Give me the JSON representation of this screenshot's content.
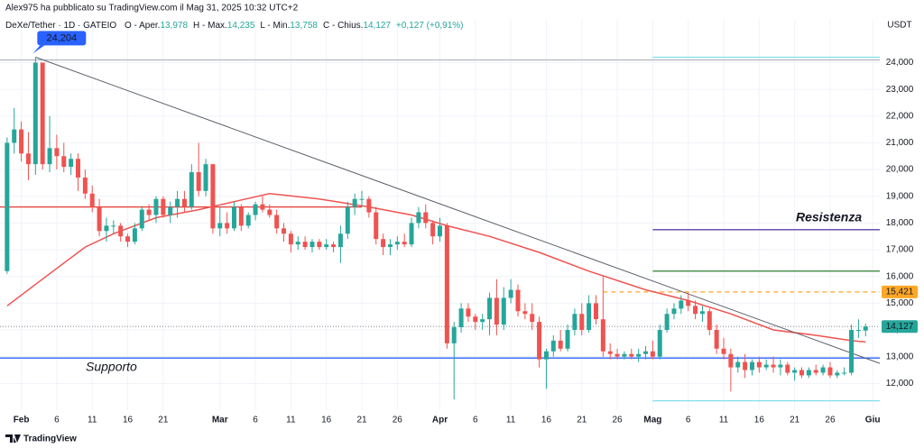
{
  "header": {
    "publisher": "Alex975 ha pubblicato su TradingView.com il Mag 31, 2025 10:32 UTC+2",
    "symbol": "DeXe/Tether · 1D · GATEIO",
    "ohlc": [
      {
        "label": "O - Aper.",
        "value": "13,978"
      },
      {
        "label": "H - Max.",
        "value": "14,235"
      },
      {
        "label": "L - Min.",
        "value": "13,758"
      },
      {
        "label": "C - Chius.",
        "value": "14,127"
      }
    ],
    "change": "+0,127 (+0,91%)"
  },
  "footer": "TradingView",
  "chart_data": {
    "type": "candlestick",
    "unit": "USDT",
    "up_color": "#26a69a",
    "down_color": "#ef5350",
    "grid": true,
    "xlim": [
      "2025-01-29",
      "2025-06-02"
    ],
    "ylim": [
      11,
      25.6
    ],
    "yticks": [
      {
        "value": 12,
        "label": "12,000"
      },
      {
        "value": 13,
        "label": "13,000"
      },
      {
        "value": 14,
        "label": "14,000"
      },
      {
        "value": 15,
        "label": "15,000"
      },
      {
        "value": 16,
        "label": "16,000"
      },
      {
        "value": 17,
        "label": "17,000"
      },
      {
        "value": 18,
        "label": "18,000"
      },
      {
        "value": 19,
        "label": "19,000"
      },
      {
        "value": 20,
        "label": "20,000"
      },
      {
        "value": 21,
        "label": "21,000"
      },
      {
        "value": 22,
        "label": "22,000"
      },
      {
        "value": 23,
        "label": "23,000"
      },
      {
        "value": 24,
        "label": "24,000"
      }
    ],
    "xticks": [
      {
        "value": "2025-02-01",
        "label": "Feb"
      },
      {
        "value": "2025-02-06",
        "label": "6"
      },
      {
        "value": "2025-02-11",
        "label": "11"
      },
      {
        "value": "2025-02-16",
        "label": "16"
      },
      {
        "value": "2025-02-21",
        "label": "21"
      },
      {
        "value": "2025-03-01",
        "label": "Mar"
      },
      {
        "value": "2025-03-06",
        "label": "6"
      },
      {
        "value": "2025-03-11",
        "label": "11"
      },
      {
        "value": "2025-03-16",
        "label": "16"
      },
      {
        "value": "2025-03-21",
        "label": "21"
      },
      {
        "value": "2025-03-26",
        "label": "26"
      },
      {
        "value": "2025-04-01",
        "label": "Apr"
      },
      {
        "value": "2025-04-06",
        "label": "6"
      },
      {
        "value": "2025-04-11",
        "label": "11"
      },
      {
        "value": "2025-04-16",
        "label": "16"
      },
      {
        "value": "2025-04-21",
        "label": "21"
      },
      {
        "value": "2025-04-26",
        "label": "26"
      },
      {
        "value": "2025-05-01",
        "label": "Mag"
      },
      {
        "value": "2025-05-06",
        "label": "6"
      },
      {
        "value": "2025-05-11",
        "label": "11"
      },
      {
        "value": "2025-05-16",
        "label": "16"
      },
      {
        "value": "2025-05-21",
        "label": "21"
      },
      {
        "value": "2025-05-26",
        "label": "26"
      },
      {
        "value": "2025-06-01",
        "label": "Giu"
      }
    ],
    "x": [
      "2025-01-30",
      "2025-01-31",
      "2025-02-01",
      "2025-02-02",
      "2025-02-03",
      "2025-02-04",
      "2025-02-05",
      "2025-02-06",
      "2025-02-07",
      "2025-02-08",
      "2025-02-09",
      "2025-02-10",
      "2025-02-11",
      "2025-02-12",
      "2025-02-13",
      "2025-02-14",
      "2025-02-15",
      "2025-02-16",
      "2025-02-17",
      "2025-02-18",
      "2025-02-19",
      "2025-02-20",
      "2025-02-21",
      "2025-02-22",
      "2025-02-23",
      "2025-02-24",
      "2025-02-25",
      "2025-02-26",
      "2025-02-27",
      "2025-02-28",
      "2025-03-01",
      "2025-03-02",
      "2025-03-03",
      "2025-03-04",
      "2025-03-05",
      "2025-03-06",
      "2025-03-07",
      "2025-03-08",
      "2025-03-09",
      "2025-03-10",
      "2025-03-11",
      "2025-03-12",
      "2025-03-13",
      "2025-03-14",
      "2025-03-15",
      "2025-03-16",
      "2025-03-17",
      "2025-03-18",
      "2025-03-19",
      "2025-03-20",
      "2025-03-21",
      "2025-03-22",
      "2025-03-23",
      "2025-03-24",
      "2025-03-25",
      "2025-03-26",
      "2025-03-27",
      "2025-03-28",
      "2025-03-29",
      "2025-03-30",
      "2025-03-31",
      "2025-04-01",
      "2025-04-02",
      "2025-04-03",
      "2025-04-04",
      "2025-04-05",
      "2025-04-06",
      "2025-04-07",
      "2025-04-08",
      "2025-04-09",
      "2025-04-10",
      "2025-04-11",
      "2025-04-12",
      "2025-04-13",
      "2025-04-14",
      "2025-04-15",
      "2025-04-16",
      "2025-04-17",
      "2025-04-18",
      "2025-04-19",
      "2025-04-20",
      "2025-04-21",
      "2025-04-22",
      "2025-04-23",
      "2025-04-24",
      "2025-04-25",
      "2025-04-26",
      "2025-04-27",
      "2025-04-28",
      "2025-04-29",
      "2025-04-30",
      "2025-05-01",
      "2025-05-02",
      "2025-05-03",
      "2025-05-04",
      "2025-05-05",
      "2025-05-06",
      "2025-05-07",
      "2025-05-08",
      "2025-05-09",
      "2025-05-10",
      "2025-05-11",
      "2025-05-12",
      "2025-05-13",
      "2025-05-14",
      "2025-05-15",
      "2025-05-16",
      "2025-05-17",
      "2025-05-18",
      "2025-05-19",
      "2025-05-20",
      "2025-05-21",
      "2025-05-22",
      "2025-05-23",
      "2025-05-24",
      "2025-05-25",
      "2025-05-26",
      "2025-05-27",
      "2025-05-28",
      "2025-05-29",
      "2025-05-30",
      "2025-05-31"
    ],
    "ohlc": [
      [
        16.2,
        21.2,
        16.1,
        21.0
      ],
      [
        21.0,
        22.3,
        20.6,
        21.5
      ],
      [
        21.5,
        21.8,
        20.3,
        20.6
      ],
      [
        20.6,
        21.4,
        19.6,
        20.2
      ],
      [
        20.2,
        24.204,
        19.8,
        24.0
      ],
      [
        24.0,
        24.0,
        20.0,
        20.2
      ],
      [
        20.2,
        22.0,
        19.9,
        20.8
      ],
      [
        20.8,
        21.3,
        20.0,
        20.5
      ],
      [
        20.5,
        21.0,
        19.9,
        20.1
      ],
      [
        20.1,
        20.6,
        19.8,
        20.4
      ],
      [
        20.4,
        20.6,
        19.2,
        19.7
      ],
      [
        19.7,
        20.0,
        18.9,
        19.1
      ],
      [
        19.1,
        19.4,
        18.4,
        18.6
      ],
      [
        18.6,
        18.9,
        17.5,
        17.7
      ],
      [
        17.7,
        18.2,
        17.3,
        17.9
      ],
      [
        17.9,
        18.1,
        17.6,
        17.9
      ],
      [
        17.9,
        18.0,
        17.3,
        17.5
      ],
      [
        17.5,
        17.6,
        17.1,
        17.3
      ],
      [
        17.3,
        18.0,
        17.2,
        17.8
      ],
      [
        17.8,
        18.6,
        17.7,
        18.5
      ],
      [
        18.5,
        18.7,
        18.1,
        18.3
      ],
      [
        18.3,
        19.0,
        18.0,
        18.9
      ],
      [
        18.9,
        19.0,
        18.2,
        18.3
      ],
      [
        18.3,
        18.8,
        18.0,
        18.6
      ],
      [
        18.6,
        19.2,
        18.2,
        18.9
      ],
      [
        18.9,
        19.2,
        18.4,
        18.6
      ],
      [
        18.6,
        20.2,
        18.5,
        19.9
      ],
      [
        19.9,
        21.0,
        19.0,
        19.2
      ],
      [
        19.2,
        20.4,
        19.0,
        20.2
      ],
      [
        20.2,
        20.2,
        17.6,
        17.8
      ],
      [
        17.8,
        18.6,
        17.5,
        18.0
      ],
      [
        18.0,
        18.4,
        17.6,
        17.8
      ],
      [
        17.8,
        18.8,
        17.7,
        18.6
      ],
      [
        18.6,
        18.7,
        17.7,
        17.9
      ],
      [
        17.9,
        18.4,
        17.8,
        18.3
      ],
      [
        18.3,
        18.8,
        18.1,
        18.7
      ],
      [
        18.7,
        19.0,
        18.4,
        18.5
      ],
      [
        18.5,
        18.7,
        18.2,
        18.3
      ],
      [
        18.3,
        18.5,
        17.6,
        17.8
      ],
      [
        17.8,
        18.0,
        17.3,
        17.6
      ],
      [
        17.6,
        17.7,
        16.9,
        17.2
      ],
      [
        17.2,
        17.5,
        17.0,
        17.3
      ],
      [
        17.3,
        17.5,
        17.0,
        17.1
      ],
      [
        17.1,
        17.4,
        16.9,
        17.3
      ],
      [
        17.3,
        17.4,
        17.0,
        17.1
      ],
      [
        17.1,
        17.4,
        17.0,
        17.2
      ],
      [
        17.2,
        17.3,
        16.9,
        17.1
      ],
      [
        17.1,
        17.9,
        16.5,
        17.6
      ],
      [
        17.6,
        18.8,
        17.4,
        18.6
      ],
      [
        18.6,
        19.1,
        18.3,
        18.9
      ],
      [
        18.9,
        19.2,
        18.6,
        18.9
      ],
      [
        18.9,
        19.0,
        18.2,
        18.4
      ],
      [
        18.4,
        18.6,
        17.2,
        17.4
      ],
      [
        17.4,
        17.6,
        16.8,
        17.1
      ],
      [
        17.1,
        17.4,
        16.8,
        17.2
      ],
      [
        17.2,
        17.5,
        17.0,
        17.3
      ],
      [
        17.3,
        17.6,
        17.1,
        17.2
      ],
      [
        17.2,
        18.2,
        17.1,
        18.0
      ],
      [
        18.0,
        18.6,
        17.8,
        18.4
      ],
      [
        18.4,
        18.7,
        17.8,
        18.0
      ],
      [
        18.0,
        18.1,
        17.2,
        17.5
      ],
      [
        17.5,
        18.2,
        17.3,
        17.9
      ],
      [
        17.9,
        18.0,
        13.3,
        13.5
      ],
      [
        13.5,
        14.3,
        11.4,
        14.1
      ],
      [
        14.1,
        15.0,
        13.9,
        14.8
      ],
      [
        14.8,
        15.0,
        14.3,
        14.5
      ],
      [
        14.5,
        14.6,
        14.0,
        14.3
      ],
      [
        14.3,
        14.6,
        14.0,
        14.4
      ],
      [
        14.4,
        15.4,
        13.8,
        15.2
      ],
      [
        15.2,
        15.9,
        13.8,
        14.2
      ],
      [
        14.2,
        15.6,
        14.0,
        15.2
      ],
      [
        15.2,
        15.9,
        15.0,
        15.5
      ],
      [
        15.5,
        15.7,
        14.5,
        14.7
      ],
      [
        14.7,
        15.0,
        14.4,
        14.6
      ],
      [
        14.6,
        15.0,
        14.0,
        14.3
      ],
      [
        14.3,
        14.5,
        12.6,
        12.9
      ],
      [
        12.9,
        13.3,
        11.8,
        13.2
      ],
      [
        13.2,
        13.8,
        13.0,
        13.6
      ],
      [
        13.6,
        14.0,
        13.2,
        13.3
      ],
      [
        13.3,
        14.2,
        13.2,
        14.0
      ],
      [
        14.0,
        14.8,
        13.8,
        14.6
      ],
      [
        14.6,
        15.0,
        13.8,
        14.0
      ],
      [
        14.0,
        15.3,
        13.9,
        15.0
      ],
      [
        15.0,
        15.3,
        14.2,
        14.4
      ],
      [
        14.4,
        16.0,
        13.0,
        13.2
      ],
      [
        13.2,
        13.5,
        12.9,
        13.1
      ],
      [
        13.1,
        13.3,
        12.9,
        13.0
      ],
      [
        13.0,
        13.2,
        12.9,
        13.1
      ],
      [
        13.1,
        13.3,
        12.9,
        13.0
      ],
      [
        13.0,
        13.3,
        12.8,
        13.1
      ],
      [
        13.1,
        13.4,
        12.9,
        13.2
      ],
      [
        13.2,
        13.6,
        12.9,
        13.0
      ],
      [
        13.0,
        14.2,
        12.9,
        14.0
      ],
      [
        14.0,
        14.8,
        13.9,
        14.6
      ],
      [
        14.6,
        15.0,
        14.4,
        14.8
      ],
      [
        14.8,
        15.3,
        14.6,
        15.1
      ],
      [
        15.1,
        15.4,
        14.7,
        14.9
      ],
      [
        14.9,
        15.1,
        14.4,
        14.6
      ],
      [
        14.6,
        14.9,
        14.3,
        14.7
      ],
      [
        14.7,
        14.8,
        13.8,
        14.0
      ],
      [
        14.0,
        14.2,
        13.1,
        13.3
      ],
      [
        13.3,
        13.7,
        12.9,
        13.1
      ],
      [
        13.1,
        13.3,
        11.7,
        12.6
      ],
      [
        12.6,
        13.0,
        12.4,
        12.8
      ],
      [
        12.8,
        13.1,
        12.2,
        12.5
      ],
      [
        12.5,
        12.9,
        12.3,
        12.8
      ],
      [
        12.8,
        13.0,
        12.4,
        12.6
      ],
      [
        12.6,
        12.9,
        12.5,
        12.7
      ],
      [
        12.7,
        13.0,
        12.4,
        12.6
      ],
      [
        12.6,
        12.9,
        12.3,
        12.7
      ],
      [
        12.7,
        12.8,
        12.3,
        12.4
      ],
      [
        12.4,
        12.6,
        12.1,
        12.5
      ],
      [
        12.5,
        12.6,
        12.2,
        12.3
      ],
      [
        12.3,
        12.6,
        12.2,
        12.5
      ],
      [
        12.5,
        12.7,
        12.3,
        12.4
      ],
      [
        12.4,
        12.7,
        12.3,
        12.6
      ],
      [
        12.6,
        12.8,
        12.2,
        12.3
      ],
      [
        12.3,
        12.5,
        12.2,
        12.4
      ],
      [
        12.4,
        12.6,
        12.3,
        12.4
      ],
      [
        12.4,
        14.2,
        12.3,
        14.0
      ],
      [
        14.0,
        14.4,
        13.7,
        14.0
      ],
      [
        13.978,
        14.235,
        13.758,
        14.127
      ]
    ],
    "ma": {
      "color": "#ef5350",
      "x": [
        "2025-01-30",
        "2025-02-05",
        "2025-02-10",
        "2025-02-14",
        "2025-02-20",
        "2025-02-26",
        "2025-03-03",
        "2025-03-08",
        "2025-03-15",
        "2025-03-22",
        "2025-03-28",
        "2025-04-02",
        "2025-04-08",
        "2025-04-15",
        "2025-04-22",
        "2025-04-30",
        "2025-05-06",
        "2025-05-12",
        "2025-05-18",
        "2025-05-24",
        "2025-05-29",
        "2025-05-31"
      ],
      "values": [
        14.9,
        16.1,
        17.1,
        17.6,
        18.2,
        18.5,
        18.8,
        19.1,
        18.9,
        18.6,
        18.3,
        17.9,
        17.5,
        16.9,
        16.2,
        15.5,
        15.1,
        14.6,
        14.0,
        13.8,
        13.6,
        13.55
      ]
    },
    "trendline": {
      "color": "#5d606b",
      "x": [
        "2025-02-03",
        "2025-06-02"
      ],
      "values": [
        24.204,
        12.75
      ]
    },
    "levels": [
      {
        "value": 24.1,
        "color": "#b2b5be",
        "from": "2025-01-29"
      },
      {
        "value": 24.2,
        "color": "#80deea",
        "from": "2025-05-01"
      },
      {
        "value": 17.75,
        "color": "#5b3fa8",
        "from": "2025-05-01"
      },
      {
        "value": 16.2,
        "color": "#2e7d32",
        "from": "2025-05-01"
      },
      {
        "value": 15.421,
        "color": "#ffa726",
        "from": "2025-04-24",
        "dash": "5 4"
      },
      {
        "value": 14.127,
        "color": "#9aa0ab",
        "from": "2025-01-29",
        "dash": "1 2"
      },
      {
        "value": 12.95,
        "color": "#2962ff",
        "from": "2025-01-29"
      },
      {
        "value": 11.35,
        "color": "#80deea",
        "from": "2025-05-01"
      },
      {
        "value": 18.6,
        "color": "#e53935",
        "from": "2025-01-29",
        "to": "2025-03-21"
      }
    ],
    "price_labels": [
      {
        "value": 15.421,
        "label": "15,421",
        "color": "#ffa726"
      },
      {
        "value": 14.127,
        "label": "14,127",
        "color": "#26a69a"
      }
    ],
    "callout": {
      "x": "2025-02-03",
      "value": 24.204,
      "label": "24,204",
      "color": "#2962ff"
    },
    "annotations": [
      {
        "text": "Supporto",
        "color": "#4a90e2"
      },
      {
        "text": "Resistenza",
        "color": "#9c27b0"
      }
    ]
  }
}
